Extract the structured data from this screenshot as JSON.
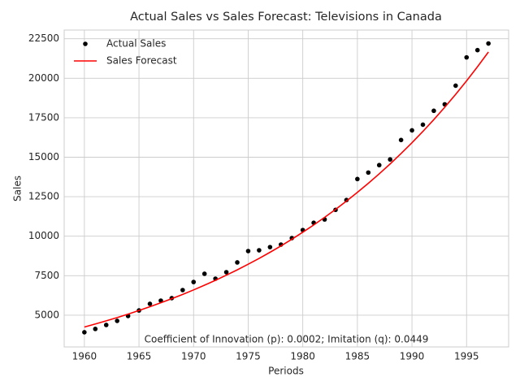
{
  "chart_data": {
    "type": "line",
    "title": "Actual Sales vs Sales Forecast: Televisions in Canada",
    "xlabel": "Periods",
    "ylabel": "Sales",
    "annotation": "Coefficient of Innovation (p): 0.0002; Imitation (q): 0.0449",
    "x": [
      1960,
      1961,
      1962,
      1963,
      1964,
      1965,
      1966,
      1967,
      1968,
      1969,
      1970,
      1971,
      1972,
      1973,
      1974,
      1975,
      1976,
      1977,
      1978,
      1979,
      1980,
      1981,
      1982,
      1983,
      1984,
      1985,
      1986,
      1987,
      1988,
      1989,
      1990,
      1991,
      1992,
      1993,
      1994,
      1995,
      1996,
      1997
    ],
    "series": [
      {
        "name": "Actual Sales",
        "color": "#000000",
        "mode": "markers",
        "values": [
          3920,
          4130,
          4380,
          4640,
          4950,
          5300,
          5720,
          5920,
          6080,
          6590,
          7100,
          7620,
          7310,
          7720,
          8340,
          9060,
          9110,
          9310,
          9470,
          9880,
          10390,
          10850,
          11060,
          11670,
          12290,
          13620,
          14030,
          14500,
          14860,
          16090,
          16700,
          17060,
          17940,
          18350,
          19530,
          21320,
          21780,
          22200
        ]
      },
      {
        "name": "Sales Forecast",
        "color": "#ff0000",
        "mode": "line",
        "values": [
          4250,
          4441,
          4641,
          4850,
          5068,
          5296,
          5535,
          5784,
          6044,
          6316,
          6600,
          6897,
          7208,
          7532,
          7871,
          8225,
          8595,
          8982,
          9386,
          9809,
          10250,
          10711,
          11193,
          11697,
          12223,
          12773,
          13348,
          13949,
          14577,
          15233,
          15918,
          16634,
          17383,
          18165,
          18982,
          19837,
          20729,
          21662
        ]
      }
    ],
    "xlim": [
      1958.15,
      1998.85
    ],
    "xticks": [
      1960,
      1965,
      1970,
      1975,
      1980,
      1985,
      1990,
      1995
    ],
    "ylim": [
      2990,
      23050
    ],
    "yticks": [
      5000,
      7500,
      10000,
      12500,
      15000,
      17500,
      20000,
      22500
    ],
    "grid": true,
    "legend": "upper left"
  }
}
